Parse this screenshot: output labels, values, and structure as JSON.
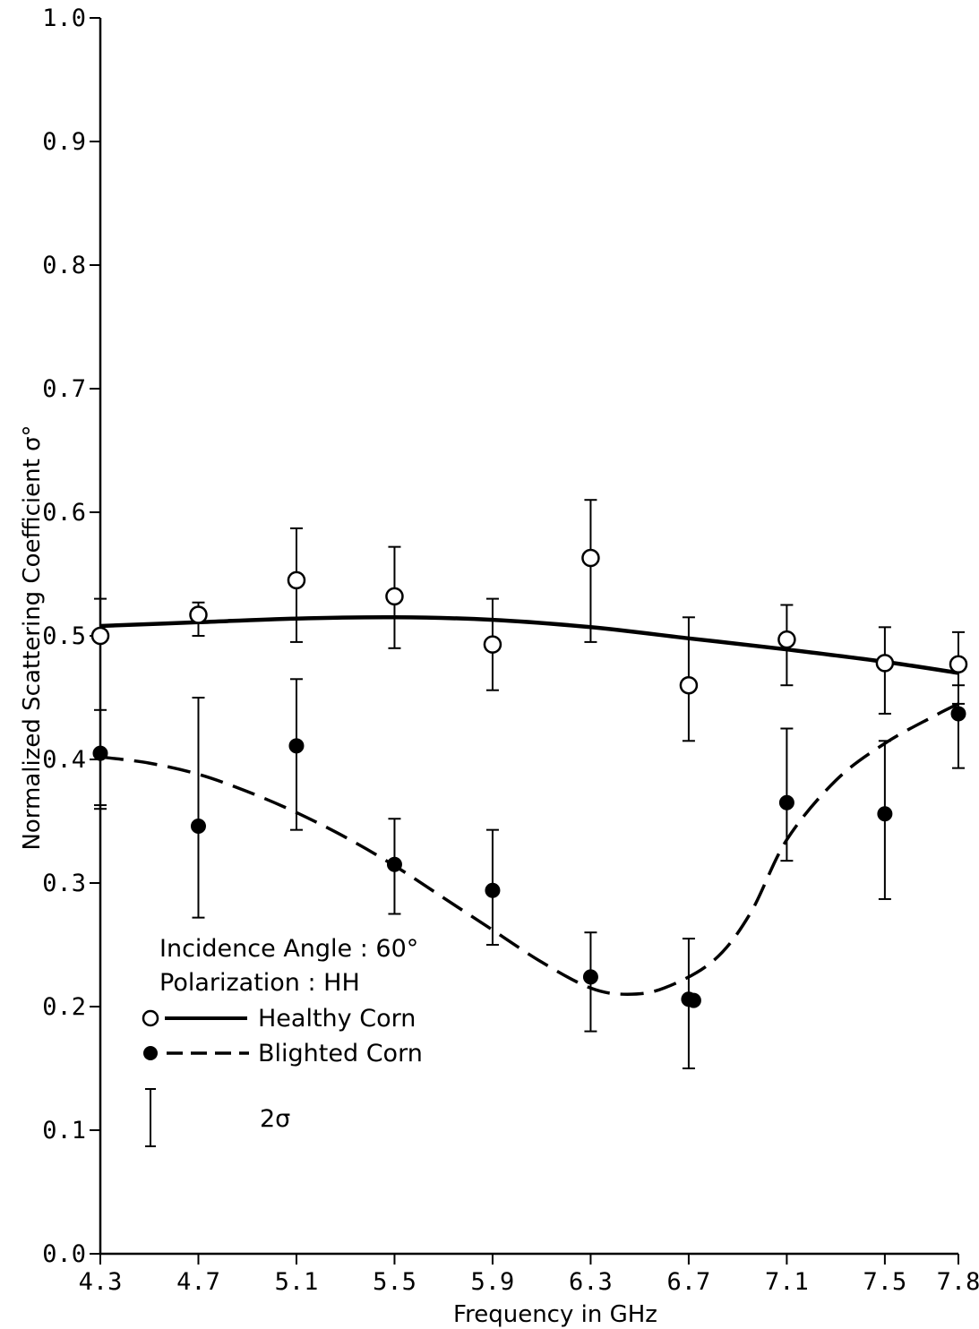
{
  "chart_data": {
    "type": "scatter",
    "xlabel": "Frequency in GHz",
    "ylabel": "Normalized Scattering Coefficient σ°",
    "xlim": [
      4.3,
      7.8
    ],
    "ylim": [
      0.0,
      1.0
    ],
    "x_ticks": [
      "4.3",
      "4.7",
      "5.1",
      "5.5",
      "5.9",
      "6.3",
      "6.7",
      "7.1",
      "7.5",
      "7.8"
    ],
    "y_ticks": [
      "0.0",
      "0.1",
      "0.2",
      "0.3",
      "0.4",
      "0.5",
      "0.6",
      "0.7",
      "0.8",
      "0.9",
      "1.0"
    ],
    "grid": false,
    "legend": {
      "position": "lower-left",
      "line1": "Incidence Angle : 60°",
      "line2": "Polarization : HH",
      "errorbar_label": "2σ"
    },
    "series": [
      {
        "name": "Healthy Corn",
        "marker": "open-circle",
        "line_style": "solid",
        "points": [
          {
            "x": 4.3,
            "y": 0.5,
            "err_low": 0.36,
            "err_high": 0.53
          },
          {
            "x": 4.7,
            "y": 0.517,
            "err_low": 0.5,
            "err_high": 0.527
          },
          {
            "x": 5.1,
            "y": 0.545,
            "err_low": 0.495,
            "err_high": 0.587
          },
          {
            "x": 5.5,
            "y": 0.532,
            "err_low": 0.49,
            "err_high": 0.572
          },
          {
            "x": 5.9,
            "y": 0.493,
            "err_low": 0.456,
            "err_high": 0.53
          },
          {
            "x": 6.3,
            "y": 0.563,
            "err_low": 0.495,
            "err_high": 0.61
          },
          {
            "x": 6.7,
            "y": 0.46,
            "err_low": 0.415,
            "err_high": 0.515
          },
          {
            "x": 7.1,
            "y": 0.497,
            "err_low": 0.46,
            "err_high": 0.525
          },
          {
            "x": 7.5,
            "y": 0.478,
            "err_low": 0.437,
            "err_high": 0.507
          },
          {
            "x": 7.8,
            "y": 0.477,
            "err_low": 0.445,
            "err_high": 0.503
          }
        ],
        "curve": [
          [
            4.3,
            0.508
          ],
          [
            4.7,
            0.511
          ],
          [
            5.1,
            0.514
          ],
          [
            5.5,
            0.515
          ],
          [
            5.9,
            0.513
          ],
          [
            6.3,
            0.507
          ],
          [
            6.7,
            0.498
          ],
          [
            7.1,
            0.489
          ],
          [
            7.5,
            0.479
          ],
          [
            7.8,
            0.47
          ]
        ]
      },
      {
        "name": "Blighted Corn",
        "marker": "filled-circle",
        "line_style": "dashed",
        "points": [
          {
            "x": 4.3,
            "y": 0.405,
            "err_low": 0.363,
            "err_high": 0.44
          },
          {
            "x": 4.7,
            "y": 0.346,
            "err_low": 0.272,
            "err_high": 0.45
          },
          {
            "x": 5.1,
            "y": 0.411,
            "err_low": 0.343,
            "err_high": 0.465
          },
          {
            "x": 5.5,
            "y": 0.315,
            "err_low": 0.275,
            "err_high": 0.352
          },
          {
            "x": 5.9,
            "y": 0.294,
            "err_low": 0.25,
            "err_high": 0.343
          },
          {
            "x": 6.3,
            "y": 0.224,
            "err_low": 0.18,
            "err_high": 0.26
          },
          {
            "x": 6.7,
            "y": 0.206,
            "err_low": 0.15,
            "err_high": 0.255
          },
          {
            "x": 7.1,
            "y": 0.365,
            "err_low": 0.318,
            "err_high": 0.425
          },
          {
            "x": 7.5,
            "y": 0.356,
            "err_low": 0.287,
            "err_high": 0.415
          },
          {
            "x": 7.8,
            "y": 0.437,
            "err_low": 0.393,
            "err_high": 0.46
          }
        ],
        "extra_points": [
          {
            "x": 6.72,
            "y": 0.205
          }
        ],
        "curve": [
          [
            4.3,
            0.402
          ],
          [
            4.5,
            0.397
          ],
          [
            4.7,
            0.388
          ],
          [
            4.9,
            0.374
          ],
          [
            5.1,
            0.357
          ],
          [
            5.3,
            0.337
          ],
          [
            5.5,
            0.314
          ],
          [
            5.7,
            0.288
          ],
          [
            5.9,
            0.262
          ],
          [
            6.1,
            0.236
          ],
          [
            6.3,
            0.215
          ],
          [
            6.45,
            0.21
          ],
          [
            6.6,
            0.215
          ],
          [
            6.8,
            0.237
          ],
          [
            6.95,
            0.275
          ],
          [
            7.1,
            0.335
          ],
          [
            7.3,
            0.383
          ],
          [
            7.5,
            0.413
          ],
          [
            7.7,
            0.435
          ],
          [
            7.8,
            0.445
          ]
        ]
      }
    ]
  }
}
